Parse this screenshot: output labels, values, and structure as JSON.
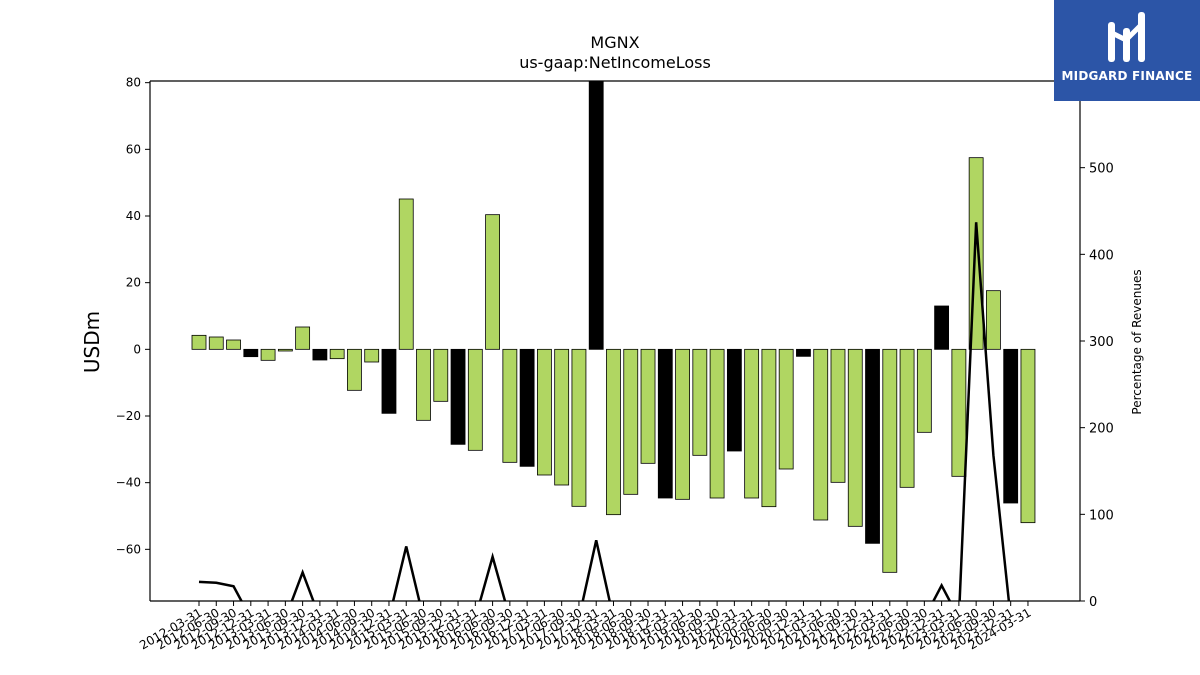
{
  "chart_data": {
    "type": "bar",
    "title": "MGNX",
    "subtitle": "us-gaap:NetIncomeLoss",
    "ylabel": "USDm",
    "y2label": "Percentage of Revenues",
    "ylim": [
      -75.5,
      80.5
    ],
    "y2lim": [
      0,
      600
    ],
    "yticks": [
      -60,
      -40,
      -20,
      0,
      20,
      40,
      60,
      80
    ],
    "y2ticks": [
      0,
      100,
      200,
      300,
      400,
      500
    ],
    "colors": {
      "standard": "#b0d662",
      "q4": "#000000",
      "line": "#000000",
      "bar_edge": "#000000"
    },
    "categories": [
      "2012-03-31",
      "2012-06-30",
      "2012-09-30",
      "2012-12-31",
      "2013-03-31",
      "2013-06-30",
      "2013-09-30",
      "2013-12-31",
      "2014-03-31",
      "2014-06-30",
      "2014-09-30",
      "2014-12-31",
      "2015-03-31",
      "2015-06-30",
      "2015-09-30",
      "2015-12-31",
      "2016-03-31",
      "2016-06-30",
      "2016-09-30",
      "2016-12-31",
      "2017-03-31",
      "2017-06-30",
      "2017-09-30",
      "2017-12-31",
      "2018-03-31",
      "2018-06-30",
      "2018-09-30",
      "2018-12-31",
      "2019-03-31",
      "2019-06-30",
      "2019-09-30",
      "2019-12-31",
      "2020-03-31",
      "2020-06-30",
      "2020-09-30",
      "2020-12-31",
      "2021-03-31",
      "2021-06-30",
      "2021-09-30",
      "2021-12-31",
      "2022-03-31",
      "2022-06-30",
      "2022-09-30",
      "2022-12-31",
      "2023-03-31",
      "2023-06-30",
      "2023-09-30",
      "2023-12-31",
      "2024-03-31"
    ],
    "series": [
      {
        "type": "bar",
        "values": [
          4.2,
          3.7,
          2.8,
          -2.2,
          -3.3,
          -0.5,
          6.7,
          -3.2,
          -2.8,
          -12.3,
          -3.8,
          -19.2,
          45.1,
          -21.3,
          -15.6,
          -28.5,
          -30.3,
          40.4,
          -33.9,
          -35.1,
          -37.7,
          -40.7,
          -47.1,
          80.5,
          -49.6,
          -43.5,
          -34.2,
          -44.6,
          -45.0,
          -31.8,
          -44.6,
          -30.5,
          -44.6,
          -47.2,
          -35.9,
          -2.1,
          -51.2,
          -39.9,
          -53.1,
          -58.2,
          -66.9,
          -41.4,
          -24.9,
          13.0,
          -38.1,
          57.5,
          17.6,
          -46.1,
          -52.0
        ]
      },
      {
        "type": "line",
        "axis": "right",
        "values": [
          22,
          21,
          17,
          -20,
          -20,
          -20,
          33,
          -20,
          -20,
          -20,
          -20,
          -20,
          63,
          -20,
          -20,
          -20,
          -20,
          51,
          -20,
          -20,
          -20,
          -20,
          -20,
          70,
          -20,
          -20,
          -20,
          -20,
          -20,
          -20,
          -20,
          -20,
          -20,
          -20,
          -20,
          -20,
          -20,
          -20,
          -20,
          -20,
          -20,
          -20,
          -20,
          18,
          -20,
          437,
          168,
          -20,
          -20
        ]
      }
    ]
  },
  "logo": {
    "text": "MIDGARD FINANCE"
  }
}
